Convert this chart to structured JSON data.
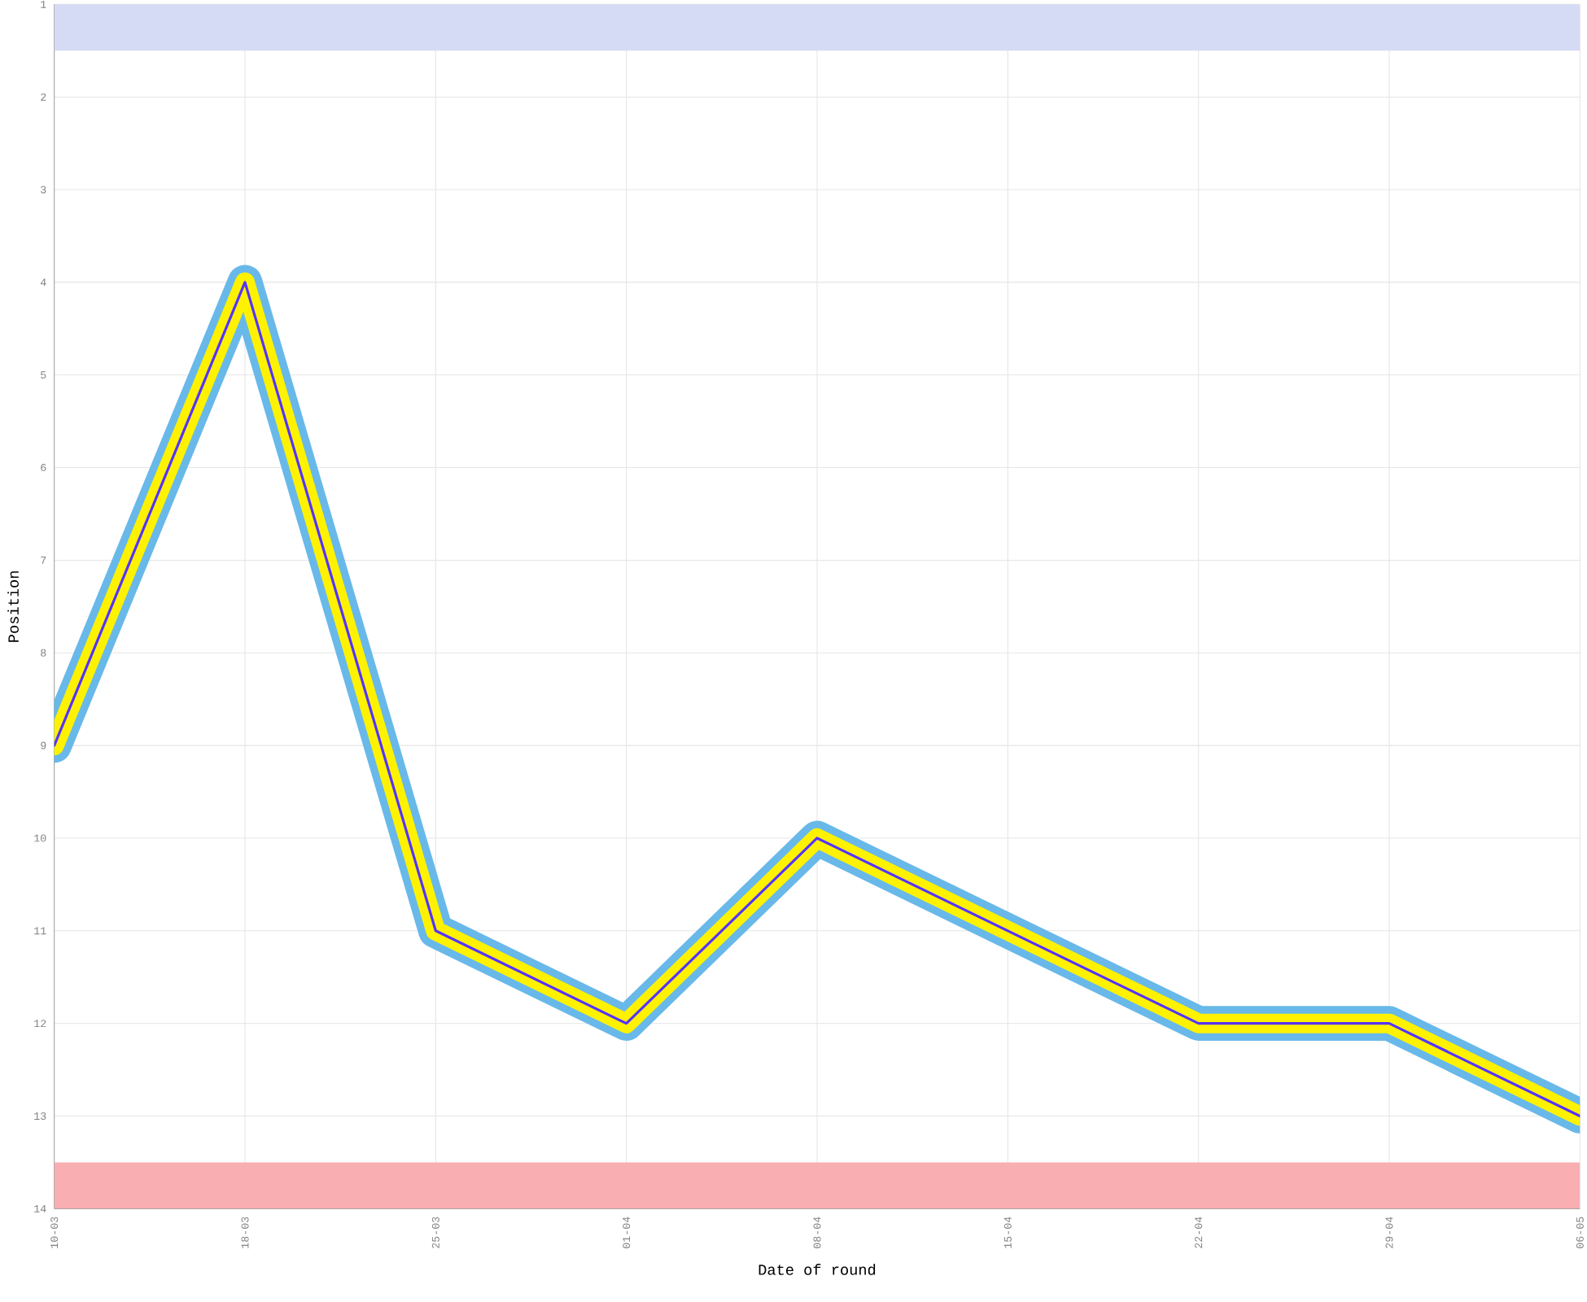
{
  "chart_data": {
    "type": "line",
    "xlabel": "Date of round",
    "ylabel": "Position",
    "categories": [
      "10-03",
      "18-03",
      "25-03",
      "01-04",
      "08-04",
      "15-04",
      "22-04",
      "29-04",
      "06-05"
    ],
    "series": [
      {
        "color": "#5533ff",
        "values": [
          9,
          4,
          11,
          12,
          10,
          11,
          12,
          12,
          13
        ]
      }
    ],
    "ylim": [
      14,
      1
    ],
    "yticks": [
      1,
      2,
      3,
      4,
      5,
      6,
      7,
      8,
      9,
      10,
      11,
      12,
      13,
      14
    ],
    "bands": [
      {
        "axis": "y",
        "from": 1,
        "to": 1.5,
        "color": "#d5dbf5"
      },
      {
        "axis": "y",
        "from": 13.5,
        "to": 14,
        "color": "#f9aeb2"
      }
    ],
    "grid": true,
    "marker": "none",
    "line_style": "solid"
  }
}
